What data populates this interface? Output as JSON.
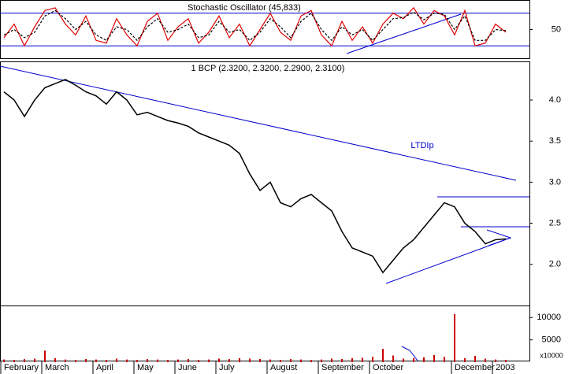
{
  "chart_data": [
    {
      "type": "stochastic",
      "title": "Stochastic Oscillator (45,833)",
      "ylim": [
        0,
        100
      ],
      "yticks": [
        50
      ],
      "levels": [
        20,
        80
      ],
      "series": [
        {
          "name": "%K",
          "color": "#e00000",
          "values": [
            35,
            60,
            20,
            55,
            85,
            90,
            60,
            40,
            75,
            30,
            25,
            70,
            40,
            20,
            65,
            80,
            30,
            55,
            70,
            25,
            45,
            75,
            35,
            60,
            20,
            50,
            80,
            45,
            30,
            75,
            85,
            40,
            20,
            65,
            30,
            55,
            25,
            60,
            80,
            70,
            90,
            60,
            85,
            75,
            40,
            85,
            20,
            25,
            60,
            45
          ]
        },
        {
          "name": "%D",
          "color": "#000000",
          "values": [
            40,
            50,
            35,
            45,
            75,
            85,
            70,
            50,
            65,
            40,
            30,
            55,
            50,
            30,
            55,
            70,
            45,
            50,
            60,
            35,
            40,
            65,
            45,
            50,
            30,
            45,
            70,
            55,
            35,
            65,
            80,
            50,
            30,
            55,
            40,
            50,
            30,
            50,
            70,
            72,
            82,
            68,
            80,
            78,
            50,
            75,
            30,
            30,
            50,
            48
          ]
        }
      ]
    },
    {
      "type": "line",
      "title": "1 BCP (2.3200, 2.3200, 2.2900, 2.3100)",
      "annotation": "LTDIp",
      "ylim": [
        1.48,
        4.47
      ],
      "yticks": [
        {
          "value": 4,
          "label": "4.0"
        },
        3.5,
        {
          "value": 3,
          "label": "3.0"
        },
        2.5,
        {
          "value": 2,
          "label": "2.0"
        }
      ],
      "color": "#000000",
      "values": [
        4.1,
        4.0,
        3.8,
        4.0,
        4.15,
        4.2,
        4.25,
        4.18,
        4.1,
        4.05,
        3.95,
        4.1,
        4.0,
        3.82,
        3.85,
        3.8,
        3.75,
        3.72,
        3.68,
        3.6,
        3.55,
        3.5,
        3.45,
        3.35,
        3.1,
        2.9,
        3.0,
        2.75,
        2.7,
        2.8,
        2.85,
        2.75,
        2.65,
        2.4,
        2.2,
        2.15,
        2.1,
        1.9,
        2.05,
        2.2,
        2.3,
        2.45,
        2.6,
        2.75,
        2.7,
        2.5,
        2.4,
        2.25,
        2.3,
        2.31
      ]
    },
    {
      "type": "bar",
      "axis_label": "x10000",
      "ylim": [
        0,
        12000
      ],
      "yticks": [
        10000,
        5000
      ],
      "color": "#cc0000",
      "categories": [
        "February",
        null,
        null,
        null,
        "March",
        null,
        null,
        null,
        null,
        "April",
        null,
        null,
        null,
        "May",
        null,
        null,
        null,
        "June",
        null,
        null,
        null,
        "July",
        null,
        null,
        null,
        null,
        "August",
        null,
        null,
        null,
        null,
        "September",
        null,
        null,
        null,
        null,
        "October",
        null,
        null,
        null,
        null,
        null,
        null,
        null,
        "December",
        null,
        null,
        null,
        "2003",
        null
      ],
      "values": [
        600,
        500,
        700,
        800,
        2600,
        900,
        600,
        500,
        700,
        600,
        500,
        800,
        600,
        500,
        700,
        600,
        500,
        600,
        700,
        500,
        600,
        800,
        700,
        900,
        800,
        700,
        600,
        500,
        700,
        600,
        500,
        600,
        800,
        700,
        900,
        1000,
        1200,
        3000,
        1500,
        800,
        900,
        1100,
        1600,
        1200,
        10800,
        900,
        1400,
        800,
        600,
        500
      ]
    }
  ]
}
